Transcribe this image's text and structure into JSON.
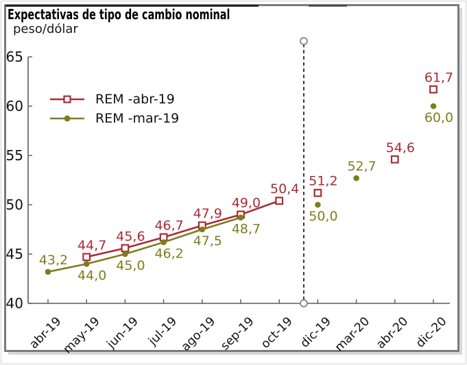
{
  "frame": {
    "title": "Expectativas de tipo de cambio nominal",
    "unit_label": "peso/dólar"
  },
  "chart_data": {
    "type": "line",
    "title": "Expectativas de tipo de cambio nominal",
    "ylabel": "peso/dólar",
    "categories": [
      "abr-19",
      "may-19",
      "jun-19",
      "jul-19",
      "ago-19",
      "sep-19",
      "oct-19",
      "dic-19",
      "mar-20",
      "abr-20",
      "dic-20"
    ],
    "ylim": [
      40,
      65
    ],
    "yticks": [
      40,
      45,
      50,
      55,
      60,
      65
    ],
    "grid": false,
    "legend_position": "upper-left-inside",
    "axis_color": "#5a5a5a",
    "tick_label_color": "#111111",
    "divider": {
      "between": [
        "oct-19",
        "dic-19"
      ],
      "style": "dashed",
      "color": "#1a1a1a",
      "end_markers": "open-circle",
      "end_marker_color": "#808080"
    },
    "series": [
      {
        "name": "REM -abr-19",
        "color": "#aa2b35",
        "marker": "open-square",
        "values": [
          null,
          44.7,
          45.6,
          46.7,
          47.9,
          49.0,
          50.4,
          51.2,
          null,
          54.6,
          61.7
        ],
        "point_labels": [
          "",
          "44,7",
          "45,6",
          "46,7",
          "47,9",
          "49,0",
          "50,4",
          "51,2",
          "",
          "54,6",
          "61,7"
        ],
        "label_side": [
          "",
          "above",
          "above",
          "above",
          "above",
          "above",
          "above",
          "above",
          "",
          "above",
          "above"
        ],
        "line_connects": [
          "may-19",
          "oct-19"
        ]
      },
      {
        "name": "REM -mar-19",
        "color": "#7e7d1e",
        "marker": "filled-circle",
        "values": [
          43.2,
          44.0,
          45.0,
          46.2,
          47.5,
          48.7,
          null,
          50.0,
          52.7,
          null,
          60.0
        ],
        "point_labels": [
          "43,2",
          "44,0",
          "45,0",
          "46,2",
          "47,5",
          "48,7",
          "",
          "50,0",
          "52,7",
          "",
          "60,0"
        ],
        "label_side": [
          "above",
          "below",
          "below",
          "below",
          "below",
          "below",
          "",
          "below",
          "above",
          "",
          "below"
        ],
        "line_connects": [
          "abr-19",
          "sep-19"
        ]
      }
    ]
  }
}
